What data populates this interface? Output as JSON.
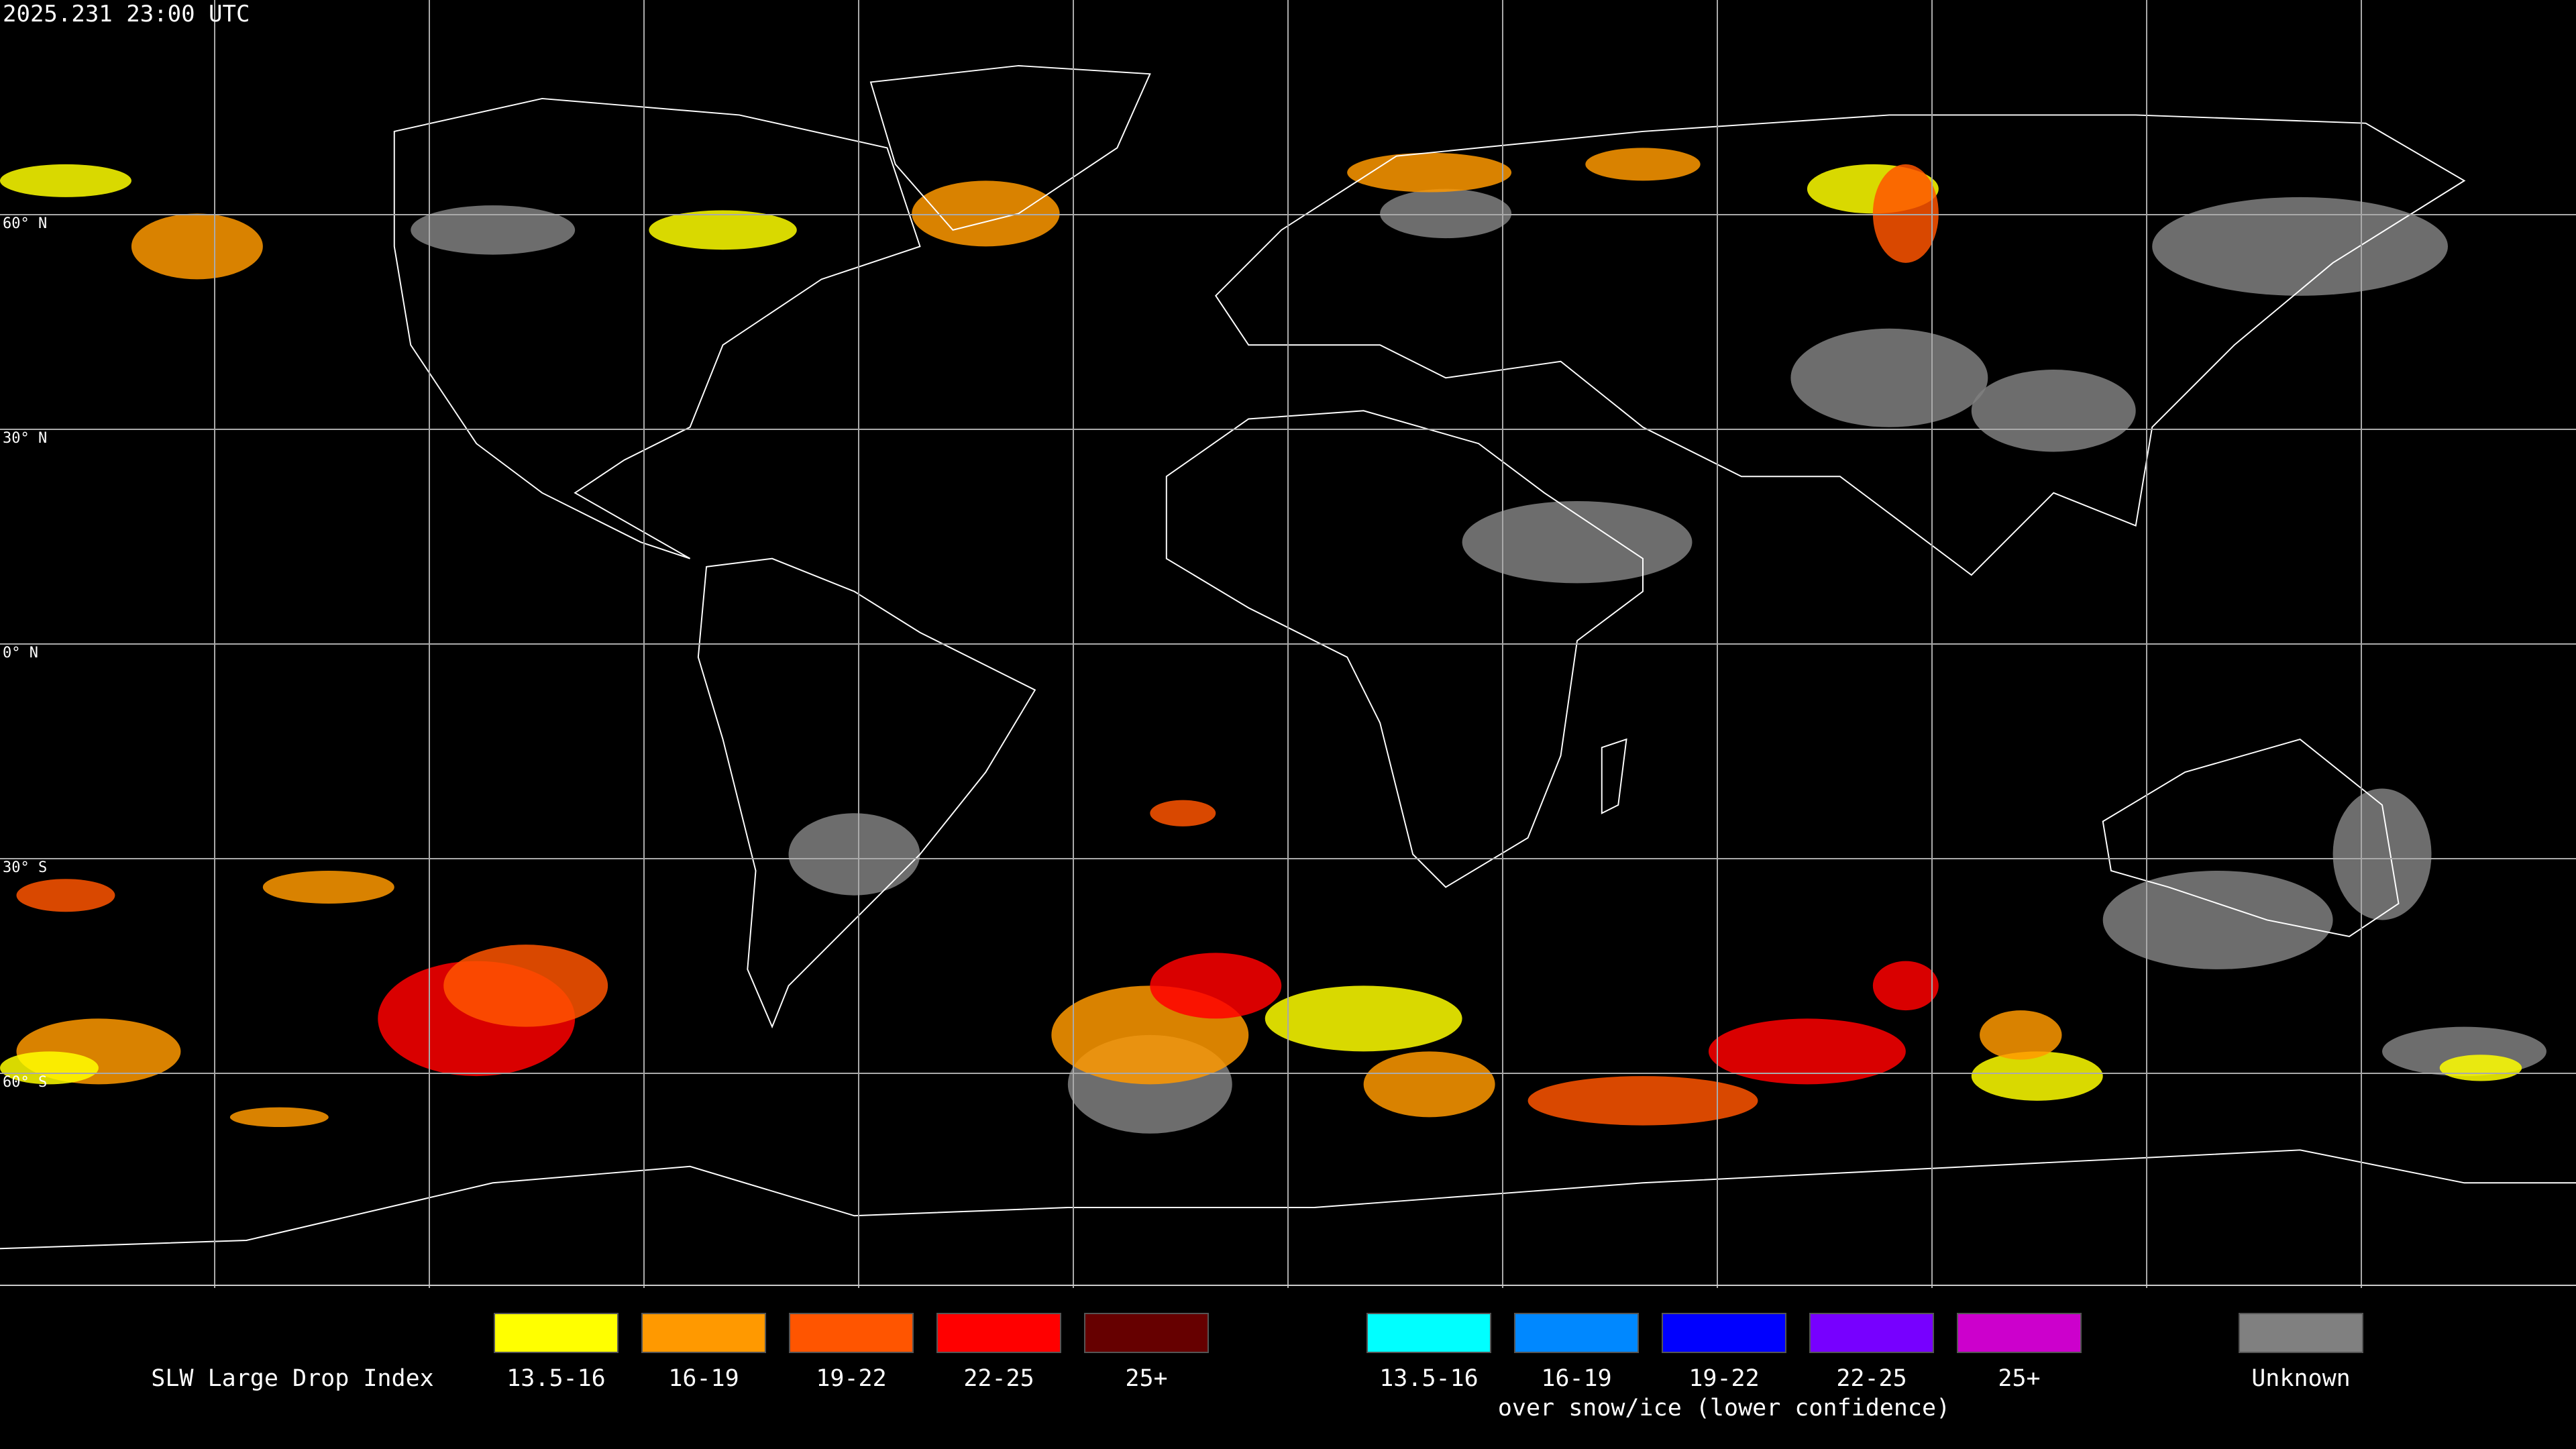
{
  "timestamp": "2025.231 23:00 UTC",
  "map": {
    "latitude_labels": [
      "60° N",
      "30° N",
      "0° N",
      "30° S",
      "60° S"
    ]
  },
  "legend": {
    "title": "SLW Large Drop Index",
    "groups": [
      {
        "items": [
          {
            "label": "13.5-16",
            "color": "#ffff00"
          },
          {
            "label": "16-19",
            "color": "#ff9900"
          },
          {
            "label": "19-22",
            "color": "#ff5500"
          },
          {
            "label": "22-25",
            "color": "#ff0000"
          },
          {
            "label": "25+",
            "color": "#660000"
          }
        ]
      },
      {
        "items": [
          {
            "label": "13.5-16",
            "color": "#00ffff"
          },
          {
            "label": "16-19",
            "color": "#0088ff"
          },
          {
            "label": "19-22",
            "color": "#0000ff"
          },
          {
            "label": "22-25",
            "color": "#7700ff"
          },
          {
            "label": "25+",
            "color": "#cc00cc"
          }
        ],
        "caption": "over snow/ice (lower confidence)"
      },
      {
        "items": [
          {
            "label": "Unknown",
            "color": "#808080"
          }
        ]
      }
    ]
  }
}
